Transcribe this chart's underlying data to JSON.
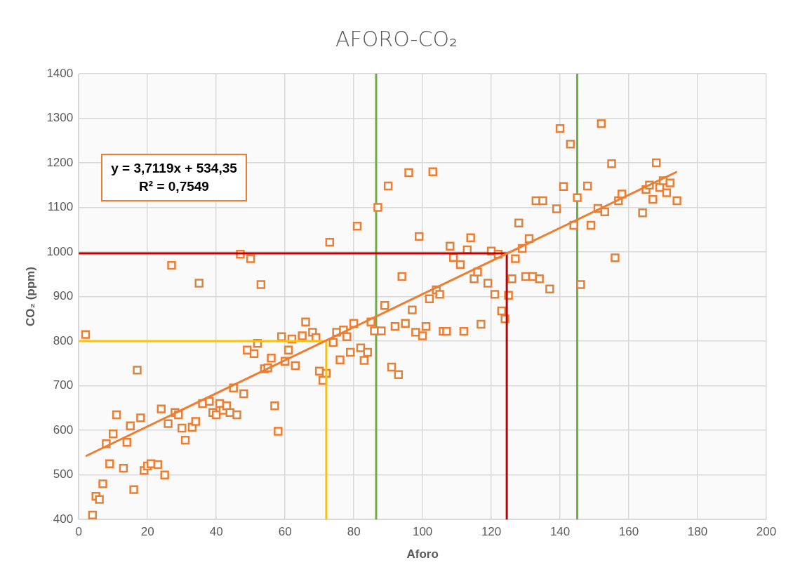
{
  "chart_data": {
    "type": "scatter",
    "title": "AFORO-CO₂",
    "xlabel": "Aforo",
    "ylabel": "CO₂ (ppm)",
    "xlim": [
      0,
      200
    ],
    "xticks": [
      0,
      20,
      40,
      60,
      80,
      100,
      120,
      140,
      160,
      180,
      200
    ],
    "ylim": [
      400,
      1400
    ],
    "yticks": [
      400,
      500,
      600,
      700,
      800,
      900,
      1000,
      1100,
      1200,
      1300,
      1400
    ],
    "grid": true,
    "legend": false,
    "annotations": [
      "y = 3,7119x + 534,35",
      "R² = 0,7549"
    ],
    "ref_lines": [
      {
        "axis": "x",
        "value": 86.5,
        "color": "#70ad47"
      },
      {
        "axis": "x",
        "value": 145,
        "color": "#70ad47"
      }
    ],
    "series": [
      {
        "marker": "square",
        "color": "#ed7d31",
        "x": [
          2,
          4,
          5,
          6,
          7,
          8,
          9,
          10,
          11,
          13,
          14,
          15,
          16,
          17,
          18,
          19,
          20,
          21,
          23,
          24,
          25,
          26,
          27,
          28,
          29,
          30,
          31,
          33,
          34,
          35,
          36,
          38,
          39,
          40,
          41,
          42,
          43,
          44,
          45,
          46,
          47,
          48,
          49,
          50,
          51,
          52,
          53,
          54,
          55,
          56,
          57,
          58,
          59,
          60,
          61,
          62,
          63,
          65,
          66,
          68,
          69,
          70,
          71,
          72,
          73,
          74,
          75,
          76,
          77,
          78,
          79,
          80,
          81,
          82,
          83,
          84,
          85,
          86,
          87,
          88,
          89,
          90,
          91,
          92,
          93,
          94,
          95,
          96,
          97,
          98,
          99,
          100,
          101,
          102,
          103,
          104,
          105,
          106,
          107,
          108,
          109,
          111,
          112,
          113,
          114,
          115,
          116,
          117,
          119,
          120,
          121,
          122,
          123,
          124,
          125,
          126,
          127,
          128,
          129,
          130,
          131,
          132,
          133,
          134,
          135,
          137,
          139,
          140,
          141,
          143,
          144,
          145,
          146,
          148,
          149,
          151,
          152,
          153,
          155,
          156,
          157,
          158,
          164,
          165,
          166,
          167,
          168,
          169,
          170,
          171,
          172,
          174
        ],
        "values": [
          815,
          410,
          452,
          445,
          480,
          570,
          525,
          592,
          635,
          515,
          573,
          610,
          467,
          735,
          628,
          510,
          520,
          525,
          523,
          648,
          500,
          615,
          970,
          640,
          635,
          605,
          578,
          607,
          620,
          930,
          660,
          665,
          640,
          635,
          660,
          645,
          655,
          640,
          695,
          635,
          995,
          682,
          780,
          985,
          772,
          795,
          927,
          738,
          740,
          762,
          655,
          598,
          810,
          755,
          780,
          805,
          745,
          812,
          843,
          820,
          808,
          733,
          712,
          728,
          1022,
          797,
          820,
          758,
          825,
          810,
          775,
          840,
          1058,
          785,
          757,
          775,
          843,
          823,
          1100,
          823,
          880,
          1148,
          742,
          833,
          725,
          945,
          840,
          1178,
          870,
          820,
          1035,
          812,
          833,
          895,
          1180,
          915,
          905,
          822,
          822,
          1013,
          988,
          972,
          822,
          1005,
          1032,
          940,
          955,
          838,
          930,
          1002,
          905,
          995,
          868,
          850,
          903,
          940,
          985,
          1065,
          1008,
          945,
          1030,
          945,
          1115,
          940,
          1115,
          917,
          1097,
          1277,
          1147,
          1242,
          1060,
          1122,
          927,
          1148,
          1060,
          1098,
          1288,
          1090,
          1198,
          987,
          1115,
          1130,
          1088,
          1140,
          1150,
          1118,
          1200,
          1145,
          1160,
          1133,
          1155,
          1115
        ]
      },
      {
        "type": "line",
        "color": "#ed7d31",
        "x": [
          2,
          174
        ],
        "values": [
          542,
          1180
        ]
      },
      {
        "type": "line",
        "color": "#c00000",
        "x": [
          0,
          124.5,
          124.5
        ],
        "values": [
          997,
          997,
          400
        ]
      },
      {
        "type": "line",
        "color": "#ffc000",
        "x": [
          0,
          72,
          72
        ],
        "values": [
          800,
          800,
          400
        ]
      }
    ]
  }
}
